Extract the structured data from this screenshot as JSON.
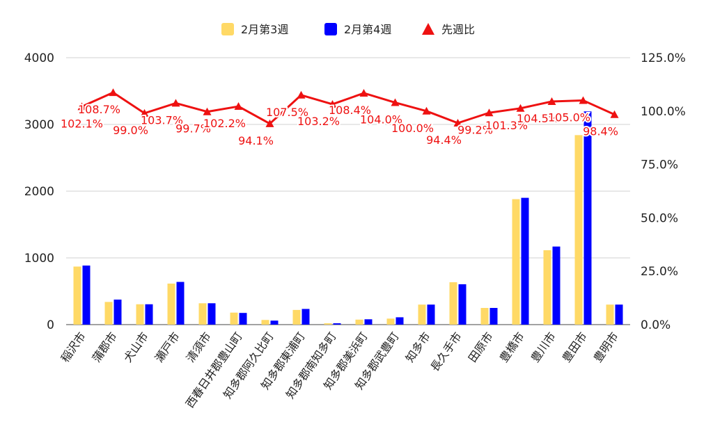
{
  "chart_data": {
    "type": "bar",
    "legend_position": "top",
    "grid": true,
    "categories": [
      "稲沢市",
      "蒲郡市",
      "犬山市",
      "瀬戸市",
      "清須市",
      "西春日井郡豊山町",
      "知多郡阿久比町",
      "知多郡東浦町",
      "知多郡南知多町",
      "知多郡美浜町",
      "知多郡武豊町",
      "知多市",
      "長久手市",
      "田原市",
      "豊橋市",
      "豊川市",
      "豊田市",
      "豊明市"
    ],
    "series": [
      {
        "name": "2月第3週",
        "kind": "bar",
        "axis": "left",
        "color": "#FFD966",
        "values": [
          870,
          340,
          305,
          615,
          320,
          180,
          70,
          220,
          20,
          75,
          90,
          300,
          635,
          250,
          1880,
          1115,
          2840,
          300
        ]
      },
      {
        "name": "2月第4週",
        "kind": "bar",
        "axis": "left",
        "color": "#0000FF",
        "values": [
          885,
          375,
          305,
          640,
          320,
          175,
          60,
          235,
          20,
          80,
          110,
          300,
          605,
          250,
          1900,
          1170,
          3195,
          300
        ]
      },
      {
        "name": "先週比",
        "kind": "line",
        "axis": "right",
        "color": "#EE1111",
        "marker": "triangle",
        "values": [
          102.1,
          108.7,
          99.0,
          103.7,
          99.7,
          102.2,
          94.1,
          107.5,
          103.2,
          108.4,
          104.0,
          100.0,
          94.4,
          99.2,
          101.3,
          104.5,
          105.0,
          98.4
        ],
        "labels": [
          "102.1%",
          "108.7%",
          "99.0%",
          "103.7%",
          "99.7%",
          "102.2%",
          "94.1%",
          "107.5%",
          "103.2%",
          "108.4%",
          "104.0%",
          "100.0%",
          "94.4%",
          "99.2%",
          "101.3%",
          "104.5%",
          "105.0%",
          "98.4%"
        ]
      }
    ],
    "y_left": {
      "min": 0,
      "max": 4000,
      "ticks": [
        0,
        1000,
        2000,
        3000,
        4000
      ]
    },
    "y_right": {
      "min": 0,
      "max": 125,
      "ticks": [
        "0.0%",
        "25.0%",
        "50.0%",
        "75.0%",
        "100.0%",
        "125.0%"
      ]
    }
  }
}
